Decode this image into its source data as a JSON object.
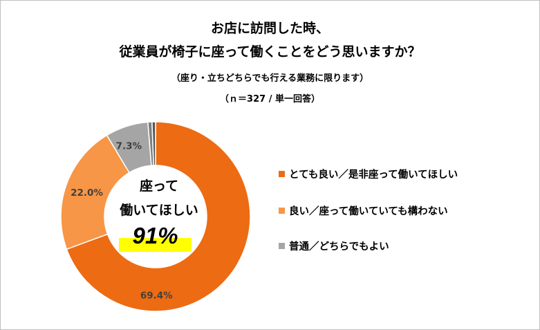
{
  "chart_data": {
    "type": "pie",
    "variant": "donut",
    "title_lines": [
      "お店に訪問した時、",
      "従業員が椅子に座って働くことをどう思いますか？"
    ],
    "subtitle": "（座り・立ちどちらでも行える業務に限ります）",
    "sample_note": "（ｎ＝327 / 単一回答）",
    "categories": [
      "とても良い／是非座って働いてほしい",
      "良い／座って働いていても構わない",
      "普通／どちらでもよい",
      "",
      ""
    ],
    "values": [
      69.4,
      22.0,
      7.3,
      0.7,
      0.6
    ],
    "data_labels": [
      "69.4%",
      "22.0%",
      "7.3%",
      "",
      ""
    ],
    "colors": [
      "#ed6b12",
      "#f79646",
      "#a5a5a5",
      "#7f7f7f",
      "#595959"
    ],
    "legend_position": "right",
    "center_label": {
      "line1": "座って",
      "line2": "働いてほしい",
      "value": "91%",
      "highlight_color": "#ffff00"
    }
  },
  "legend": [
    {
      "label": "とても良い／是非座って働いてほしい",
      "color": "#ed6b12"
    },
    {
      "label": "良い／座って働いていても構わない",
      "color": "#f79646"
    },
    {
      "label": "普通／どちらでもよい",
      "color": "#a5a5a5"
    }
  ]
}
